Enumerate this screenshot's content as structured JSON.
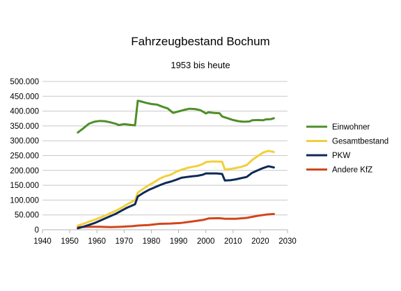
{
  "chart_data": {
    "type": "line",
    "title": "Fahrzeugbestand Bochum",
    "subtitle": "1953 bis heute",
    "xlabel": "",
    "ylabel": "",
    "xlim": [
      1940,
      2030
    ],
    "ylim": [
      0,
      500000
    ],
    "x_ticks": [
      "1940",
      "1950",
      "1960",
      "1970",
      "1980",
      "1990",
      "2000",
      "2010",
      "2020",
      "2030"
    ],
    "y_ticks": [
      "0",
      "50.000",
      "100.000",
      "150.000",
      "200.000",
      "250.000",
      "300.000",
      "350.000",
      "400.000",
      "450.000",
      "500.000"
    ],
    "grid": "horizontal",
    "legend_position": "right",
    "series": [
      {
        "name": "Einwohner",
        "color": "#4e8f28",
        "points": [
          [
            1953,
            328000
          ],
          [
            1955,
            342000
          ],
          [
            1957,
            357000
          ],
          [
            1959,
            364000
          ],
          [
            1961,
            367000
          ],
          [
            1963,
            366000
          ],
          [
            1965,
            362000
          ],
          [
            1967,
            357000
          ],
          [
            1968,
            353000
          ],
          [
            1970,
            356000
          ],
          [
            1972,
            354000
          ],
          [
            1974,
            352000
          ],
          [
            1975,
            435000
          ],
          [
            1976,
            433000
          ],
          [
            1978,
            428000
          ],
          [
            1980,
            424000
          ],
          [
            1982,
            422000
          ],
          [
            1984,
            415000
          ],
          [
            1986,
            409000
          ],
          [
            1988,
            394000
          ],
          [
            1990,
            399000
          ],
          [
            1992,
            404000
          ],
          [
            1994,
            408000
          ],
          [
            1996,
            407000
          ],
          [
            1998,
            403000
          ],
          [
            1999,
            398000
          ],
          [
            2000,
            392000
          ],
          [
            2001,
            396000
          ],
          [
            2003,
            394000
          ],
          [
            2005,
            393000
          ],
          [
            2006,
            382000
          ],
          [
            2008,
            376000
          ],
          [
            2010,
            370000
          ],
          [
            2012,
            366000
          ],
          [
            2014,
            364000
          ],
          [
            2016,
            365000
          ],
          [
            2017,
            369000
          ],
          [
            2019,
            370000
          ],
          [
            2021,
            369000
          ],
          [
            2022,
            372000
          ],
          [
            2024,
            373000
          ],
          [
            2025,
            376000
          ]
        ]
      },
      {
        "name": "Gesamtbestand",
        "color": "#f2cf3a",
        "points": [
          [
            1953,
            14000
          ],
          [
            1955,
            20000
          ],
          [
            1957,
            27000
          ],
          [
            1959,
            33000
          ],
          [
            1961,
            40000
          ],
          [
            1963,
            48000
          ],
          [
            1965,
            56000
          ],
          [
            1967,
            64000
          ],
          [
            1969,
            74000
          ],
          [
            1971,
            85000
          ],
          [
            1973,
            95000
          ],
          [
            1974,
            100000
          ],
          [
            1975,
            125000
          ],
          [
            1977,
            138000
          ],
          [
            1979,
            150000
          ],
          [
            1981,
            160000
          ],
          [
            1983,
            172000
          ],
          [
            1985,
            180000
          ],
          [
            1987,
            185000
          ],
          [
            1989,
            195000
          ],
          [
            1991,
            202000
          ],
          [
            1993,
            208000
          ],
          [
            1995,
            212000
          ],
          [
            1997,
            215000
          ],
          [
            1999,
            222000
          ],
          [
            2000,
            228000
          ],
          [
            2002,
            230000
          ],
          [
            2004,
            230000
          ],
          [
            2006,
            229000
          ],
          [
            2007,
            203000
          ],
          [
            2009,
            205000
          ],
          [
            2011,
            208000
          ],
          [
            2013,
            212000
          ],
          [
            2015,
            218000
          ],
          [
            2017,
            235000
          ],
          [
            2019,
            248000
          ],
          [
            2021,
            260000
          ],
          [
            2023,
            266000
          ],
          [
            2025,
            262000
          ]
        ]
      },
      {
        "name": "PKW",
        "color": "#0e2a57",
        "points": [
          [
            1953,
            5000
          ],
          [
            1955,
            10000
          ],
          [
            1957,
            16000
          ],
          [
            1959,
            22000
          ],
          [
            1961,
            30000
          ],
          [
            1963,
            38000
          ],
          [
            1965,
            46000
          ],
          [
            1967,
            54000
          ],
          [
            1969,
            64000
          ],
          [
            1971,
            74000
          ],
          [
            1973,
            82000
          ],
          [
            1974,
            86000
          ],
          [
            1975,
            112000
          ],
          [
            1977,
            124000
          ],
          [
            1979,
            134000
          ],
          [
            1981,
            142000
          ],
          [
            1983,
            150000
          ],
          [
            1985,
            157000
          ],
          [
            1987,
            162000
          ],
          [
            1989,
            168000
          ],
          [
            1991,
            175000
          ],
          [
            1993,
            178000
          ],
          [
            1995,
            180000
          ],
          [
            1997,
            182000
          ],
          [
            1999,
            186000
          ],
          [
            2000,
            190000
          ],
          [
            2002,
            190000
          ],
          [
            2004,
            190000
          ],
          [
            2006,
            188000
          ],
          [
            2007,
            166000
          ],
          [
            2009,
            167000
          ],
          [
            2011,
            170000
          ],
          [
            2013,
            174000
          ],
          [
            2015,
            178000
          ],
          [
            2017,
            192000
          ],
          [
            2019,
            200000
          ],
          [
            2021,
            208000
          ],
          [
            2023,
            214000
          ],
          [
            2025,
            210000
          ]
        ]
      },
      {
        "name": "Andere KfZ",
        "color": "#d1461b",
        "points": [
          [
            1953,
            9000
          ],
          [
            1957,
            10000
          ],
          [
            1961,
            10000
          ],
          [
            1965,
            9000
          ],
          [
            1969,
            10000
          ],
          [
            1971,
            11000
          ],
          [
            1973,
            12000
          ],
          [
            1975,
            14000
          ],
          [
            1979,
            16000
          ],
          [
            1983,
            20000
          ],
          [
            1987,
            21000
          ],
          [
            1991,
            23000
          ],
          [
            1995,
            28000
          ],
          [
            1999,
            33000
          ],
          [
            2001,
            38000
          ],
          [
            2005,
            39000
          ],
          [
            2007,
            37000
          ],
          [
            2011,
            37000
          ],
          [
            2015,
            40000
          ],
          [
            2019,
            47000
          ],
          [
            2022,
            51000
          ],
          [
            2025,
            53000
          ]
        ]
      }
    ]
  }
}
